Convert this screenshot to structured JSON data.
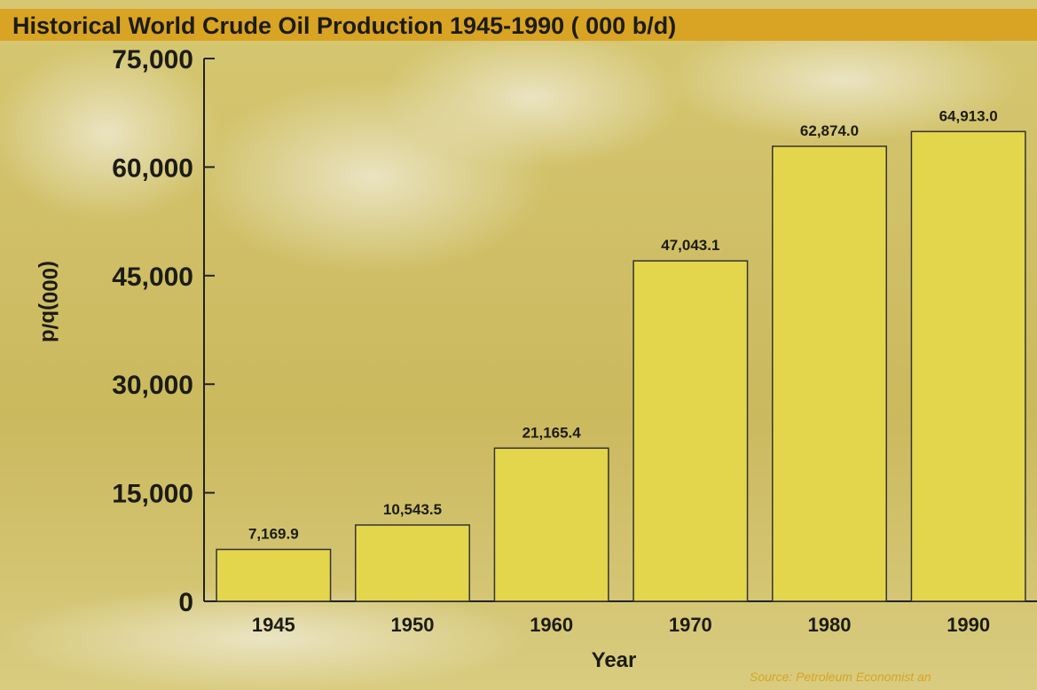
{
  "chart_data": {
    "type": "bar",
    "title": "Historical World Crude Oil Production 1945-1990 ( 000 b/d)",
    "x_label": "Year",
    "y_label": "(000)b/d",
    "source": "Source: Petroleum Economist an",
    "categories": [
      "1945",
      "1950",
      "1960",
      "1970",
      "1980",
      "1990"
    ],
    "values": [
      7169.9,
      10543.5,
      21165.4,
      47043.1,
      62874.0,
      64913.0
    ],
    "value_labels": [
      "7,169.9",
      "10,543.5",
      "21,165.4",
      "47,043.1",
      "62,874.0",
      "64,913.0"
    ],
    "color": "#e3d64c",
    "ylim": [
      0,
      75000
    ],
    "yticks": [
      0,
      {
        "value": 15000,
        "label": "15,000"
      },
      {
        "value": 30000,
        "label": "30,000"
      },
      {
        "value": 45000,
        "label": "45,000"
      },
      {
        "value": 60000,
        "label": "60,000"
      },
      {
        "value": 75000,
        "label": "75,000"
      }
    ]
  }
}
